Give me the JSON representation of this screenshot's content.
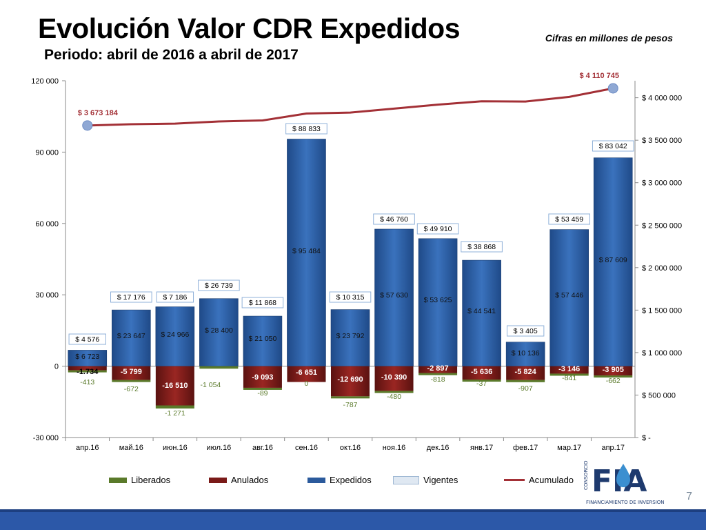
{
  "title": "Evolución Valor CDR Expedidos",
  "subtitle": "Periodo: abril de 2016 a abril de 2017",
  "note": "Cifras en millones de pesos",
  "page_number": "7",
  "logo": {
    "main": "FIA",
    "side": "CONSORCIO",
    "tagline": "FINANCIAMIENTO DE INVERSIONES EN AGUA"
  },
  "colors": {
    "liberados": "#5a7a2a",
    "anulados": "#7a1a18",
    "expedidos": "#2b5a9c",
    "vigentes": "#dfe8f2",
    "acumulado": "#a33036",
    "footer": "#2c58a8"
  },
  "legend": [
    {
      "key": "liberados",
      "label": "Liberados"
    },
    {
      "key": "anulados",
      "label": "Anulados"
    },
    {
      "key": "expedidos",
      "label": "Expedidos"
    },
    {
      "key": "vigentes",
      "label": "Vigentes"
    },
    {
      "key": "acumulado",
      "label": "Acumulado"
    }
  ],
  "chart_data": {
    "type": "bar",
    "categories": [
      "апр.16",
      "май.16",
      "июн.16",
      "июл.16",
      "авг.16",
      "сен.16",
      "окт.16",
      "ноя.16",
      "дек.16",
      "янв.17",
      "фев.17",
      "мар.17",
      "апр.17"
    ],
    "y_left": {
      "ticks": [
        "120 000",
        "90 000",
        "60 000",
        "30 000",
        "0",
        "-30 000"
      ],
      "values": [
        120000,
        90000,
        60000,
        30000,
        0,
        -30000
      ],
      "ylim": [
        -30000,
        120000
      ]
    },
    "y_right": {
      "ticks": [
        "$ 4 000 000",
        "$ 3 500 000",
        "$ 3 000 000",
        "$ 2 500 000",
        "$ 2 000 000",
        "$ 1 500 000",
        "$ 1 000 000",
        "$ 500 000",
        "$ -"
      ],
      "values": [
        4000000,
        3500000,
        3000000,
        2500000,
        2000000,
        1500000,
        1000000,
        500000,
        0
      ],
      "ylim": [
        0,
        4200000
      ]
    },
    "series": [
      {
        "name": "Expedidos",
        "values": [
          6723,
          23647,
          24966,
          28400,
          21050,
          95484,
          23792,
          57630,
          53625,
          44541,
          10136,
          57446,
          87609
        ],
        "labels": [
          "$ 6 723",
          "$ 23 647",
          "$ 24 966",
          "$ 28 400",
          "$ 21 050",
          "$ 95 484",
          "$ 23 792",
          "$ 57 630",
          "$ 53 625",
          "$ 44 541",
          "$ 10 136",
          "$ 57 446",
          "$ 87 609"
        ]
      },
      {
        "name": "Anulados",
        "values": [
          -1734,
          -5799,
          -16510,
          0,
          -9093,
          -6651,
          -12690,
          -10390,
          -2897,
          -5636,
          -5824,
          -3146,
          -3905
        ],
        "labels": [
          "-1.734",
          "-5 799",
          "-16 510",
          "",
          "-9 093",
          "-6 651",
          "-12 690",
          "-10 390",
          "-2 897",
          "-5 636",
          "-5 824",
          "-3 146",
          "-3 905"
        ]
      },
      {
        "name": "Liberados",
        "values": [
          -413,
          -672,
          -1271,
          -1054,
          -89,
          0,
          -787,
          -480,
          -818,
          -37,
          -907,
          -841,
          -662
        ],
        "labels": [
          "-413",
          "-672",
          "-1 271",
          "-1 054",
          "-89",
          "0",
          "-787",
          "-480",
          "-818",
          "-37",
          "-907",
          "-841",
          "-662"
        ]
      },
      {
        "name": "Vigentes",
        "labels": [
          "$ 4 576",
          "$ 17 176",
          "$ 7 186",
          "$ 26 739",
          "$ 11 868",
          "$ 88 833",
          "$ 10 315",
          "$ 46 760",
          "$ 49 910",
          "$ 38 868",
          "$ 3 405",
          "$ 53 459",
          "$ 83 042"
        ]
      },
      {
        "name": "Acumulado",
        "values": [
          3673184,
          3688000,
          3695000,
          3721000,
          3733000,
          3814000,
          3825000,
          3872000,
          3919000,
          3958000,
          3955000,
          4010000,
          4110745
        ],
        "labels": [
          "$ 3 673 184",
          "",
          "",
          "",
          "",
          "",
          "",
          "",
          "",
          "",
          "",
          "",
          "$ 4 110 745"
        ]
      }
    ],
    "legend_position": "bottom"
  }
}
